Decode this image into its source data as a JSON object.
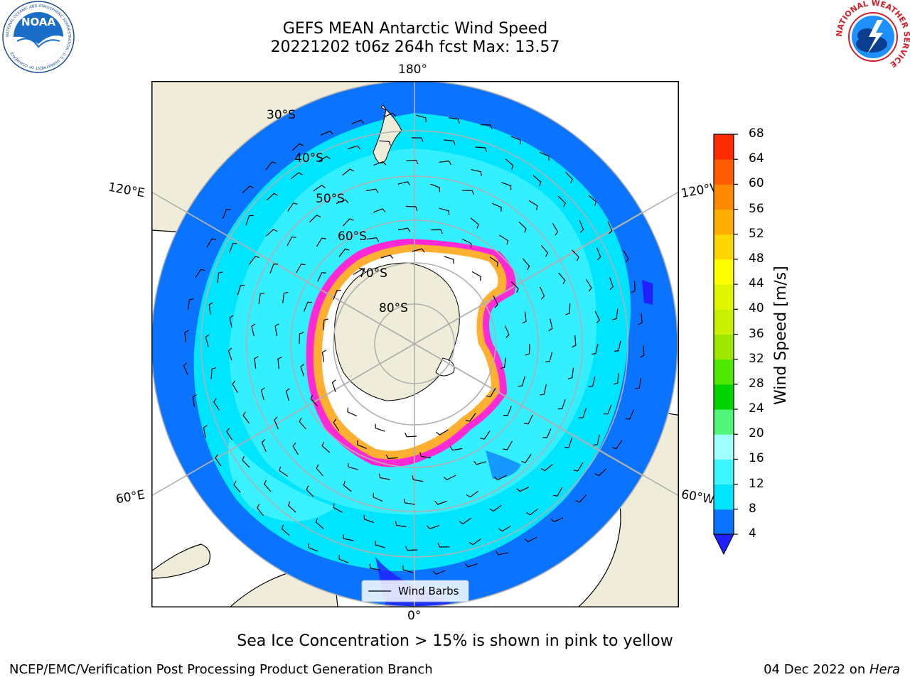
{
  "header": {
    "title_line1": "GEFS MEAN Antarctic Wind Speed",
    "title_line2": "20221202 t06z 264h fcst   Max: 13.57"
  },
  "logos": {
    "noaa_text": "NOAA",
    "noaa_ring_text": "NATIONAL OCEANIC AND ATMOSPHERIC ADMINISTRATION · U.S. DEPARTMENT OF COMMERCE",
    "nws_ring_text": "NATIONAL WEATHER SERVICE"
  },
  "map": {
    "projection": "south-polar-stereographic",
    "longitude_labels": {
      "top": "180°",
      "bottom": "0°",
      "left_upper": "120°E",
      "left_lower": "60°E",
      "right_upper": "120°W",
      "right_lower": "60°W"
    },
    "latitude_labels": [
      "30°S",
      "40°S",
      "50°S",
      "60°S",
      "70°S",
      "80°S"
    ],
    "legend_label": "Wind Barbs"
  },
  "colorbar": {
    "label": "Wind Speed [m/s]",
    "ticks": [
      "4",
      "8",
      "12",
      "16",
      "20",
      "24",
      "28",
      "32",
      "36",
      "40",
      "44",
      "48",
      "52",
      "56",
      "60",
      "64",
      "68"
    ],
    "colors": [
      "#0a73ff",
      "#00e5ff",
      "#3df5ff",
      "#a0ffff",
      "#50f57a",
      "#00d400",
      "#4fe800",
      "#9ee800",
      "#c8f000",
      "#e0f500",
      "#ffff00",
      "#ffd600",
      "#ffae00",
      "#ff8a00",
      "#ff5c00",
      "#ff2a00"
    ],
    "extend_color": "#1f1fff"
  },
  "footer": {
    "note": "Sea Ice Concentration > 15% is shown in pink to yellow",
    "credit": "NCEP/EMC/Verification Post Processing Product Generation Branch",
    "date": "04 Dec 2022 on ",
    "machine": "Hera"
  },
  "colors": {
    "land": "#efecd9",
    "ocean_deep": "#0a73ff",
    "ocean_mid": "#00e5ff",
    "ocean_light": "#5ff8ff",
    "ice": "#ff2ad5"
  }
}
